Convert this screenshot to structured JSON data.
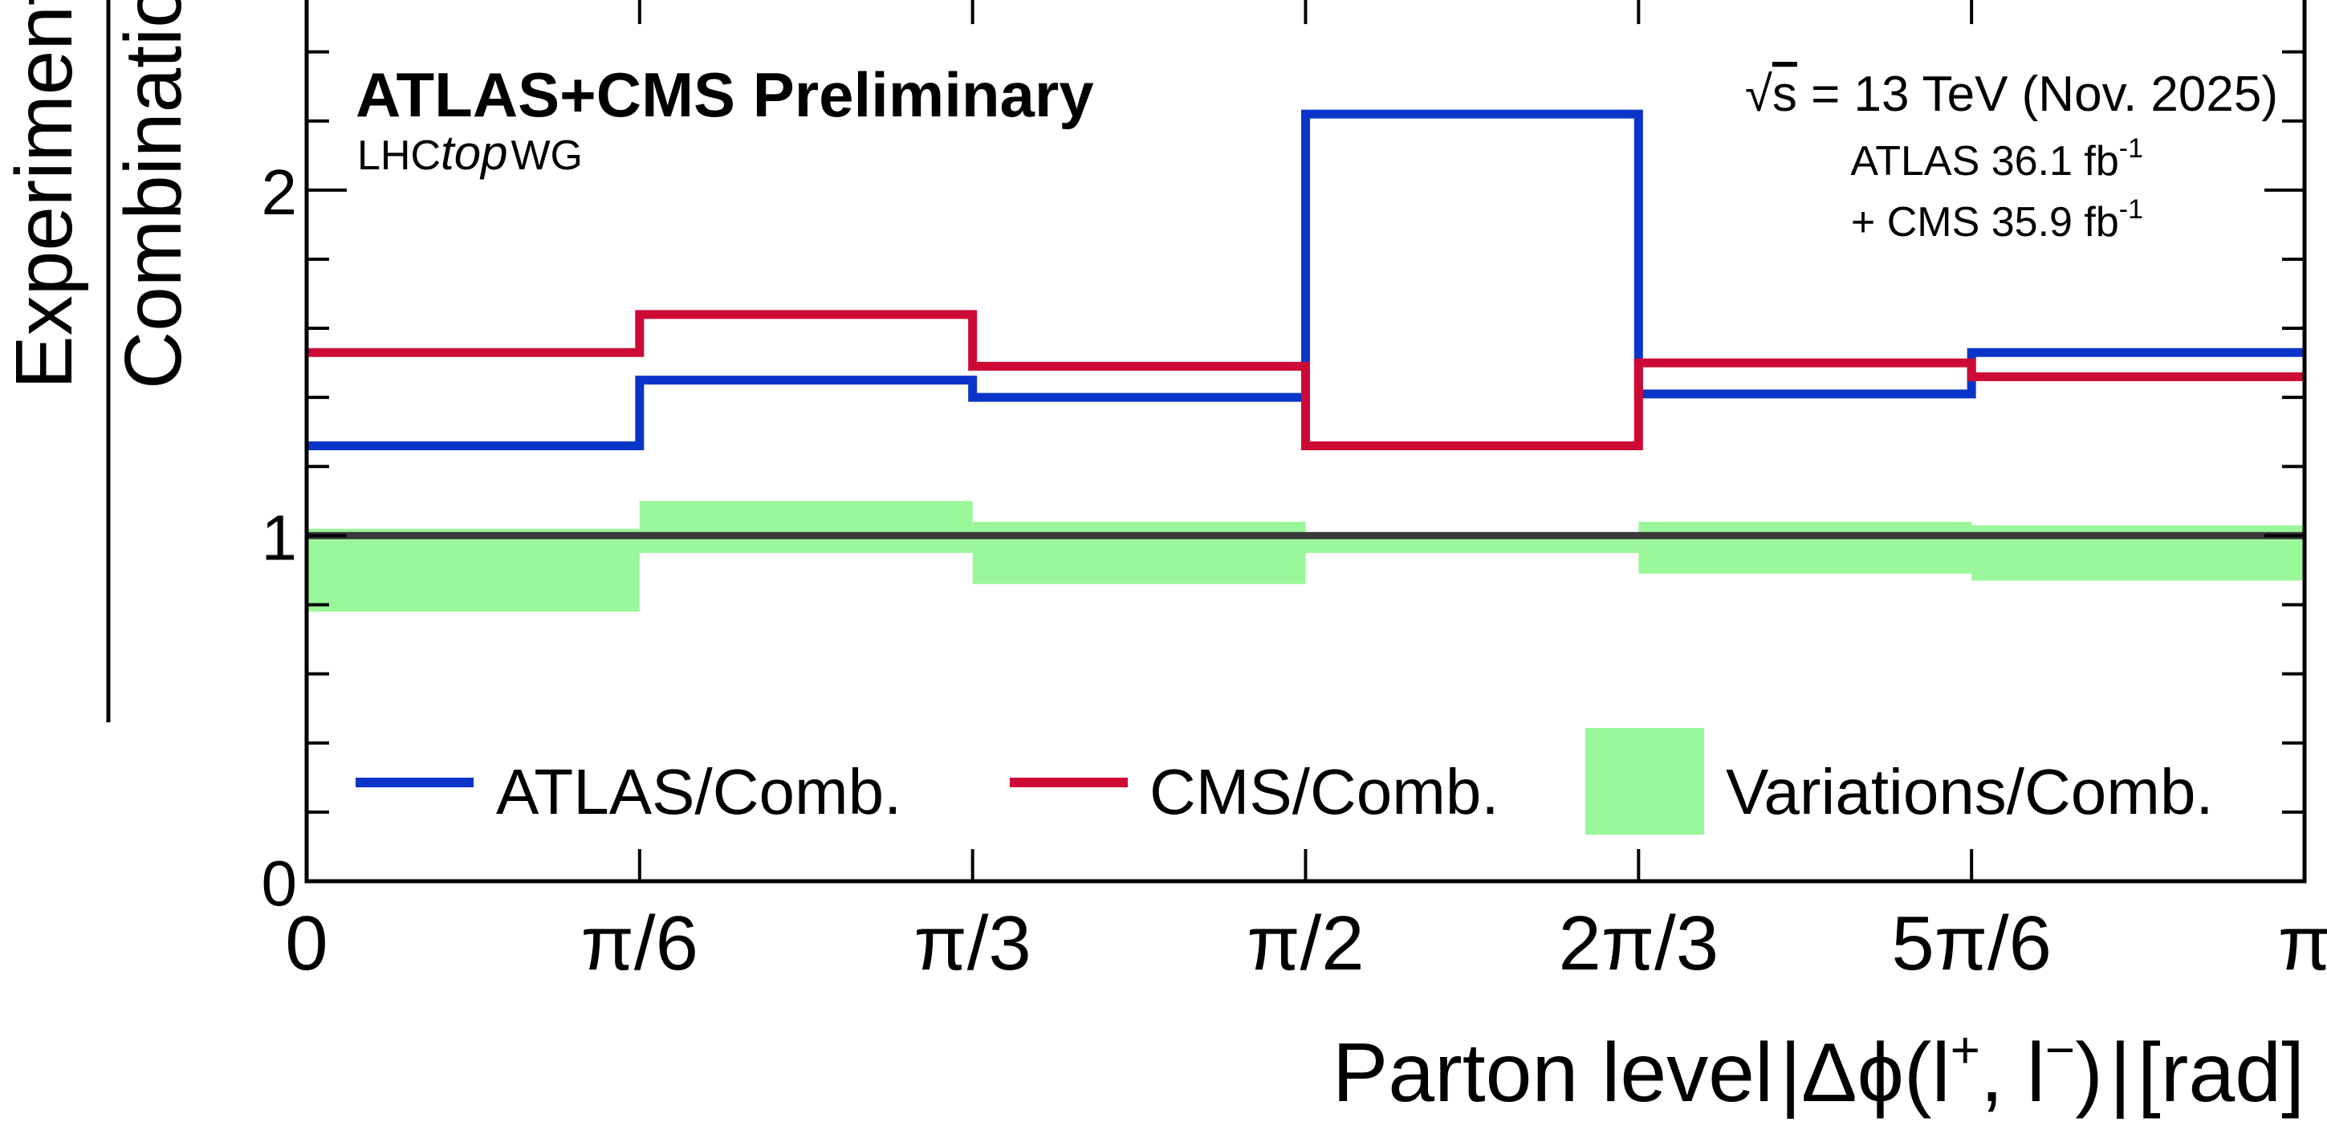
{
  "chart_data": {
    "type": "step",
    "ylabel_numerator": "Experiment Unc.",
    "ylabel_denominator": "Combination Unc.",
    "xlabel": {
      "prefix": "Parton level",
      "body": "Δϕ(l",
      "sup1": "+",
      "mid": ", l",
      "sup2": "−",
      "tail": ")",
      "unit": "[rad]"
    },
    "experiment_label": "ATLAS+CMS Preliminary",
    "group_label": {
      "pre": "LHC",
      "italic": "top",
      "post": "WG"
    },
    "energy_label": {
      "root": "√",
      "s": "s",
      "rest": " = 13 TeV (Nov. 2025)"
    },
    "lumi_atlas": {
      "text": "ATLAS 36.1 fb",
      "sup": "-1"
    },
    "lumi_cms": {
      "text": "+ CMS 35.9 fb",
      "sup": "-1"
    },
    "bin_edges": [
      0,
      0.5236,
      1.0472,
      1.5708,
      2.0944,
      2.618,
      3.1416
    ],
    "xtick_labels": [
      "0",
      "π/6",
      "π/3",
      "π/2",
      "2π/3",
      "5π/6",
      "π"
    ],
    "xlim": [
      0,
      3.1416
    ],
    "ylim": [
      0,
      2.55
    ],
    "ytick_labels": [
      "0",
      "1",
      "2"
    ],
    "ytick_values": [
      0,
      1,
      2
    ],
    "y_minor_ticks": [
      0.2,
      0.4,
      0.6,
      0.8,
      1.2,
      1.4,
      1.6,
      1.8,
      2.2,
      2.4
    ],
    "reference_line": 1.0,
    "series": [
      {
        "name": "ATLAS/Comb.",
        "color": "#0a35c8",
        "values": [
          1.26,
          1.45,
          1.4,
          2.22,
          1.41,
          1.53
        ]
      },
      {
        "name": "CMS/Comb.",
        "color": "#cc0a35",
        "values": [
          1.53,
          1.64,
          1.49,
          1.26,
          1.5,
          1.46
        ]
      }
    ],
    "band": {
      "name": "Variations/Comb.",
      "color": "#9af79a",
      "low": [
        0.78,
        0.95,
        0.86,
        0.95,
        0.89,
        0.87
      ],
      "high": [
        1.02,
        1.1,
        1.04,
        1.0,
        1.04,
        1.03
      ]
    },
    "legend_position": "bottom"
  }
}
